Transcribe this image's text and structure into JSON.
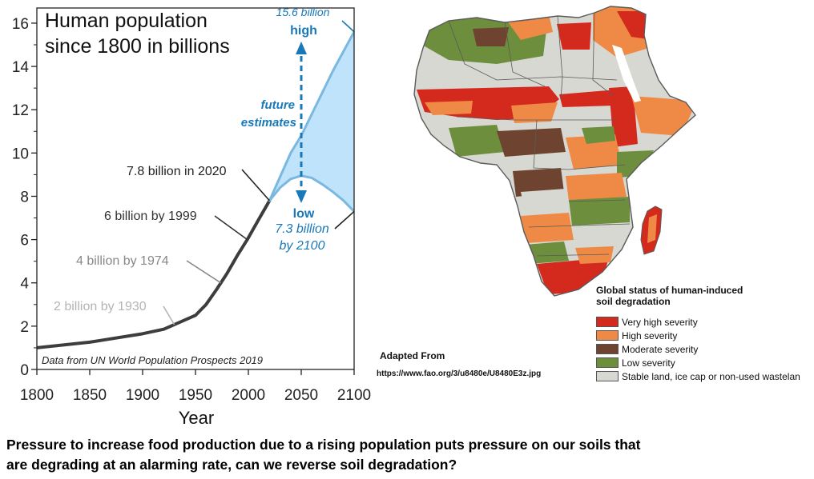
{
  "chart_data": {
    "type": "line",
    "title": "Human population since 1800 in billions",
    "xlabel": "Year",
    "ylabel": "",
    "xlim": [
      1800,
      2100
    ],
    "ylim": [
      0,
      16.7
    ],
    "x_ticks": [
      1800,
      1850,
      1900,
      1950,
      2000,
      2050,
      2100
    ],
    "y_ticks": [
      0,
      2,
      4,
      6,
      8,
      10,
      12,
      14,
      16
    ],
    "grid": false,
    "legend": "none",
    "series": [
      {
        "name": "historical",
        "color": "#3d3d3d",
        "points": [
          [
            1800,
            1.0
          ],
          [
            1850,
            1.26
          ],
          [
            1900,
            1.65
          ],
          [
            1920,
            1.86
          ],
          [
            1930,
            2.07
          ],
          [
            1950,
            2.5
          ],
          [
            1960,
            3.0
          ],
          [
            1970,
            3.7
          ],
          [
            1974,
            4.0
          ],
          [
            1980,
            4.45
          ],
          [
            1990,
            5.3
          ],
          [
            1999,
            6.0
          ],
          [
            2010,
            6.95
          ],
          [
            2020,
            7.8
          ]
        ]
      },
      {
        "name": "high",
        "color": "#7ab8e0",
        "points": [
          [
            2020,
            7.8
          ],
          [
            2030,
            8.9
          ],
          [
            2040,
            10.0
          ],
          [
            2050,
            10.8
          ],
          [
            2060,
            11.8
          ],
          [
            2070,
            12.8
          ],
          [
            2080,
            13.8
          ],
          [
            2090,
            14.7
          ],
          [
            2100,
            15.6
          ]
        ]
      },
      {
        "name": "low",
        "color": "#7ab8e0",
        "points": [
          [
            2020,
            7.8
          ],
          [
            2030,
            8.4
          ],
          [
            2040,
            8.8
          ],
          [
            2050,
            8.95
          ],
          [
            2060,
            8.85
          ],
          [
            2070,
            8.55
          ],
          [
            2080,
            8.2
          ],
          [
            2090,
            7.8
          ],
          [
            2100,
            7.3
          ]
        ]
      }
    ],
    "band": {
      "between": [
        "high",
        "low"
      ],
      "color": "#bfe3fa"
    },
    "annotations": {
      "high_value": "15.6 billion",
      "high_label": "high",
      "future_line1": "future",
      "future_line2": "estimates",
      "low_label": "low",
      "low_value": "7.3 billion",
      "low_year": "by 2100",
      "pop_2020": "7.8 billion in 2020",
      "pop_1999": "6 billion by 1999",
      "pop_1974": "4 billion by 1974",
      "pop_1930": "2 billion by 1930",
      "source": "Data from UN World Population Prospects 2019"
    },
    "colors": {
      "future_text": "#1878b8",
      "arrow": "#1878b8",
      "label_1974": "#888888",
      "label_1930": "#b4b4b4"
    }
  },
  "map": {
    "legend_title_line1": "Global status of human-induced",
    "legend_title_line2": "soil degradation",
    "legend": [
      {
        "label": "Very high severity",
        "color": "#d42a1e"
      },
      {
        "label": "High severity",
        "color": "#ef8a46"
      },
      {
        "label": "Moderate severity",
        "color": "#6e4430"
      },
      {
        "label": "Low severity",
        "color": "#6d8e3c"
      },
      {
        "label": "Stable land, ice cap or non-used wastelan",
        "color": "#d8d8d2"
      }
    ],
    "credit_title": "Adapted From",
    "credit_url": "https://www.fao.org/3/u8480e/U8480E3z.jpg"
  },
  "caption": {
    "line1": "Pressure to increase food production due to a rising population puts pressure on our soils that",
    "line2": "are degrading at an alarming rate, can we reverse soil degradation?"
  }
}
